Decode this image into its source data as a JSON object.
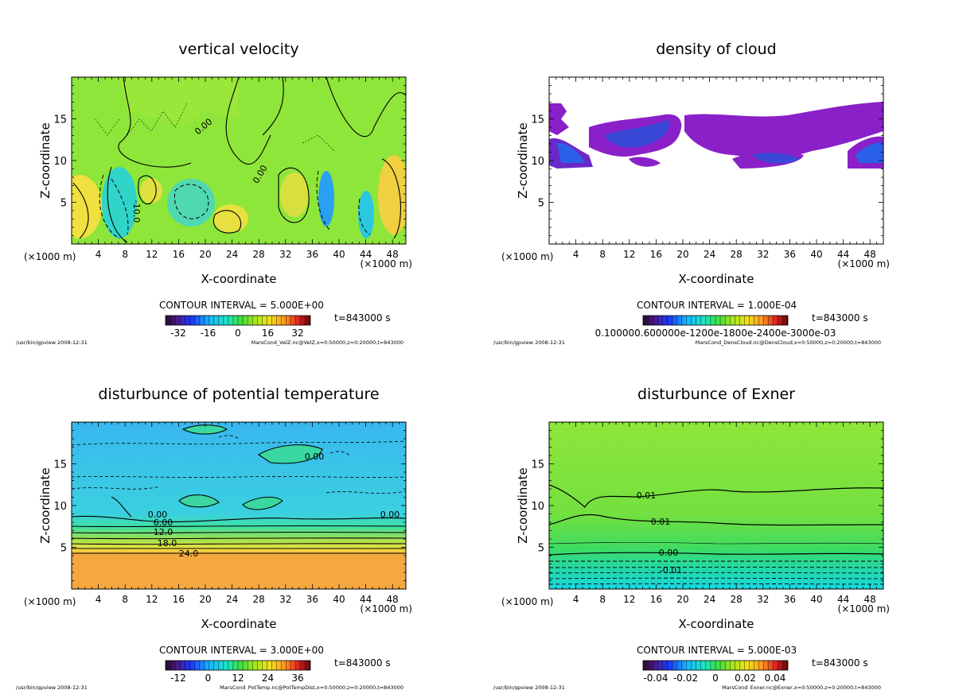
{
  "panels": [
    {
      "id": "velz",
      "title": "vertical velocity",
      "xlabel": "X-coordinate",
      "ylabel": "Z-coordinate",
      "x_unit": "(×1000 m)",
      "x_ticks": [
        "4",
        "8",
        "12",
        "16",
        "20",
        "24",
        "28",
        "32",
        "36",
        "40",
        "44",
        "48"
      ],
      "y_ticks": [
        "5",
        "10",
        "15"
      ],
      "contour_interval": "CONTOUR INTERVAL = 5.000E+00",
      "time": "t=843000 s",
      "cbar_labels": [
        "-32",
        "-16",
        "0",
        "16",
        "32"
      ],
      "footer_left": "/usr/bin/gpview  2008-12-31",
      "footer_right": "MarsCond_VelZ.nc@VelZ,x=0:50000,z=0:20000,t=843000",
      "contour_labels": [
        "0.00",
        "-10.0",
        "0.00"
      ]
    },
    {
      "id": "denscloud",
      "title": "density of cloud",
      "xlabel": "X-coordinate",
      "ylabel": "Z-coordinate",
      "x_unit": "(×1000 m)",
      "x_ticks": [
        "4",
        "8",
        "12",
        "16",
        "20",
        "24",
        "28",
        "32",
        "36",
        "40",
        "44",
        "48"
      ],
      "y_ticks": [
        "5",
        "10",
        "15"
      ],
      "contour_interval": "CONTOUR INTERVAL = 1.000E-04",
      "time": "t=843000 s",
      "cbar_labels": [
        "0.100000.600000e-1200e-1800e-2400e-3000e-03"
      ],
      "footer_left": "/usr/bin/gpview  2008-12-31",
      "footer_right": "MarsCond_DensCloud.nc@DensCloud,x=0:50000,z=0:20000,t=843000",
      "contour_labels": []
    },
    {
      "id": "pottemp",
      "title": "disturbunce of potential temperature",
      "xlabel": "X-coordinate",
      "ylabel": "Z-coordinate",
      "x_unit": "(×1000 m)",
      "x_ticks": [
        "4",
        "8",
        "12",
        "16",
        "20",
        "24",
        "28",
        "32",
        "36",
        "40",
        "44",
        "48"
      ],
      "y_ticks": [
        "5",
        "10",
        "15"
      ],
      "contour_interval": "CONTOUR INTERVAL = 3.000E+00",
      "time": "t=843000 s",
      "cbar_labels": [
        "-12",
        "0",
        "12",
        "24",
        "36"
      ],
      "footer_left": "/usr/bin/gpview  2008-12-31",
      "footer_right": "MarsCond_PotTemp.nc@PotTempDist,x=0:50000,z=0:20000,t=843000",
      "contour_labels": [
        "0.00",
        "0.00",
        "0.00",
        "6.00",
        "12.0",
        "18.0",
        "24.0"
      ]
    },
    {
      "id": "exner",
      "title": "disturbunce of Exner",
      "xlabel": "X-coordinate",
      "ylabel": "Z-coordinate",
      "x_unit": "(×1000 m)",
      "x_ticks": [
        "4",
        "8",
        "12",
        "16",
        "20",
        "24",
        "28",
        "32",
        "36",
        "40",
        "44",
        "48"
      ],
      "y_ticks": [
        "5",
        "10",
        "15"
      ],
      "contour_interval": "CONTOUR INTERVAL = 5.000E-03",
      "time": "t=843000 s",
      "cbar_labels": [
        "-0.04",
        "-0.02",
        "0",
        "0.02",
        "0.04"
      ],
      "footer_left": "/usr/bin/gpview  2008-12-31",
      "footer_right": "MarsCond_Exner.nc@Exner,x=0:50000,z=0:20000,t=843000",
      "contour_labels": [
        "0.01",
        "0.01",
        "0.00",
        "-0.01"
      ]
    }
  ],
  "chart_data": [
    {
      "type": "heatmap",
      "title": "vertical velocity",
      "xlabel": "X-coordinate",
      "ylabel": "Z-coordinate",
      "xlim": [
        0,
        50
      ],
      "ylim": [
        0,
        20
      ],
      "clim": [
        -40,
        40
      ],
      "contour_interval": 5.0,
      "time": "t=843000 s"
    },
    {
      "type": "heatmap",
      "title": "density of cloud",
      "xlabel": "X-coordinate",
      "ylabel": "Z-coordinate",
      "xlim": [
        0,
        50
      ],
      "ylim": [
        0,
        20
      ],
      "contour_interval": 0.0001,
      "time": "t=843000 s"
    },
    {
      "type": "heatmap",
      "title": "disturbunce of potential temperature",
      "xlabel": "X-coordinate",
      "ylabel": "Z-coordinate",
      "xlim": [
        0,
        50
      ],
      "ylim": [
        0,
        20
      ],
      "clim": [
        -18,
        42
      ],
      "contour_interval": 3.0,
      "contour_levels_labeled": [
        0.0,
        6.0,
        12.0,
        18.0,
        24.0
      ],
      "time": "t=843000 s"
    },
    {
      "type": "heatmap",
      "title": "disturbunce of Exner",
      "xlabel": "X-coordinate",
      "ylabel": "Z-coordinate",
      "xlim": [
        0,
        50
      ],
      "ylim": [
        0,
        20
      ],
      "clim": [
        -0.05,
        0.05
      ],
      "contour_interval": 0.005,
      "contour_levels_labeled": [
        0.01,
        0.01,
        0.0,
        -0.01
      ],
      "time": "t=843000 s"
    }
  ]
}
